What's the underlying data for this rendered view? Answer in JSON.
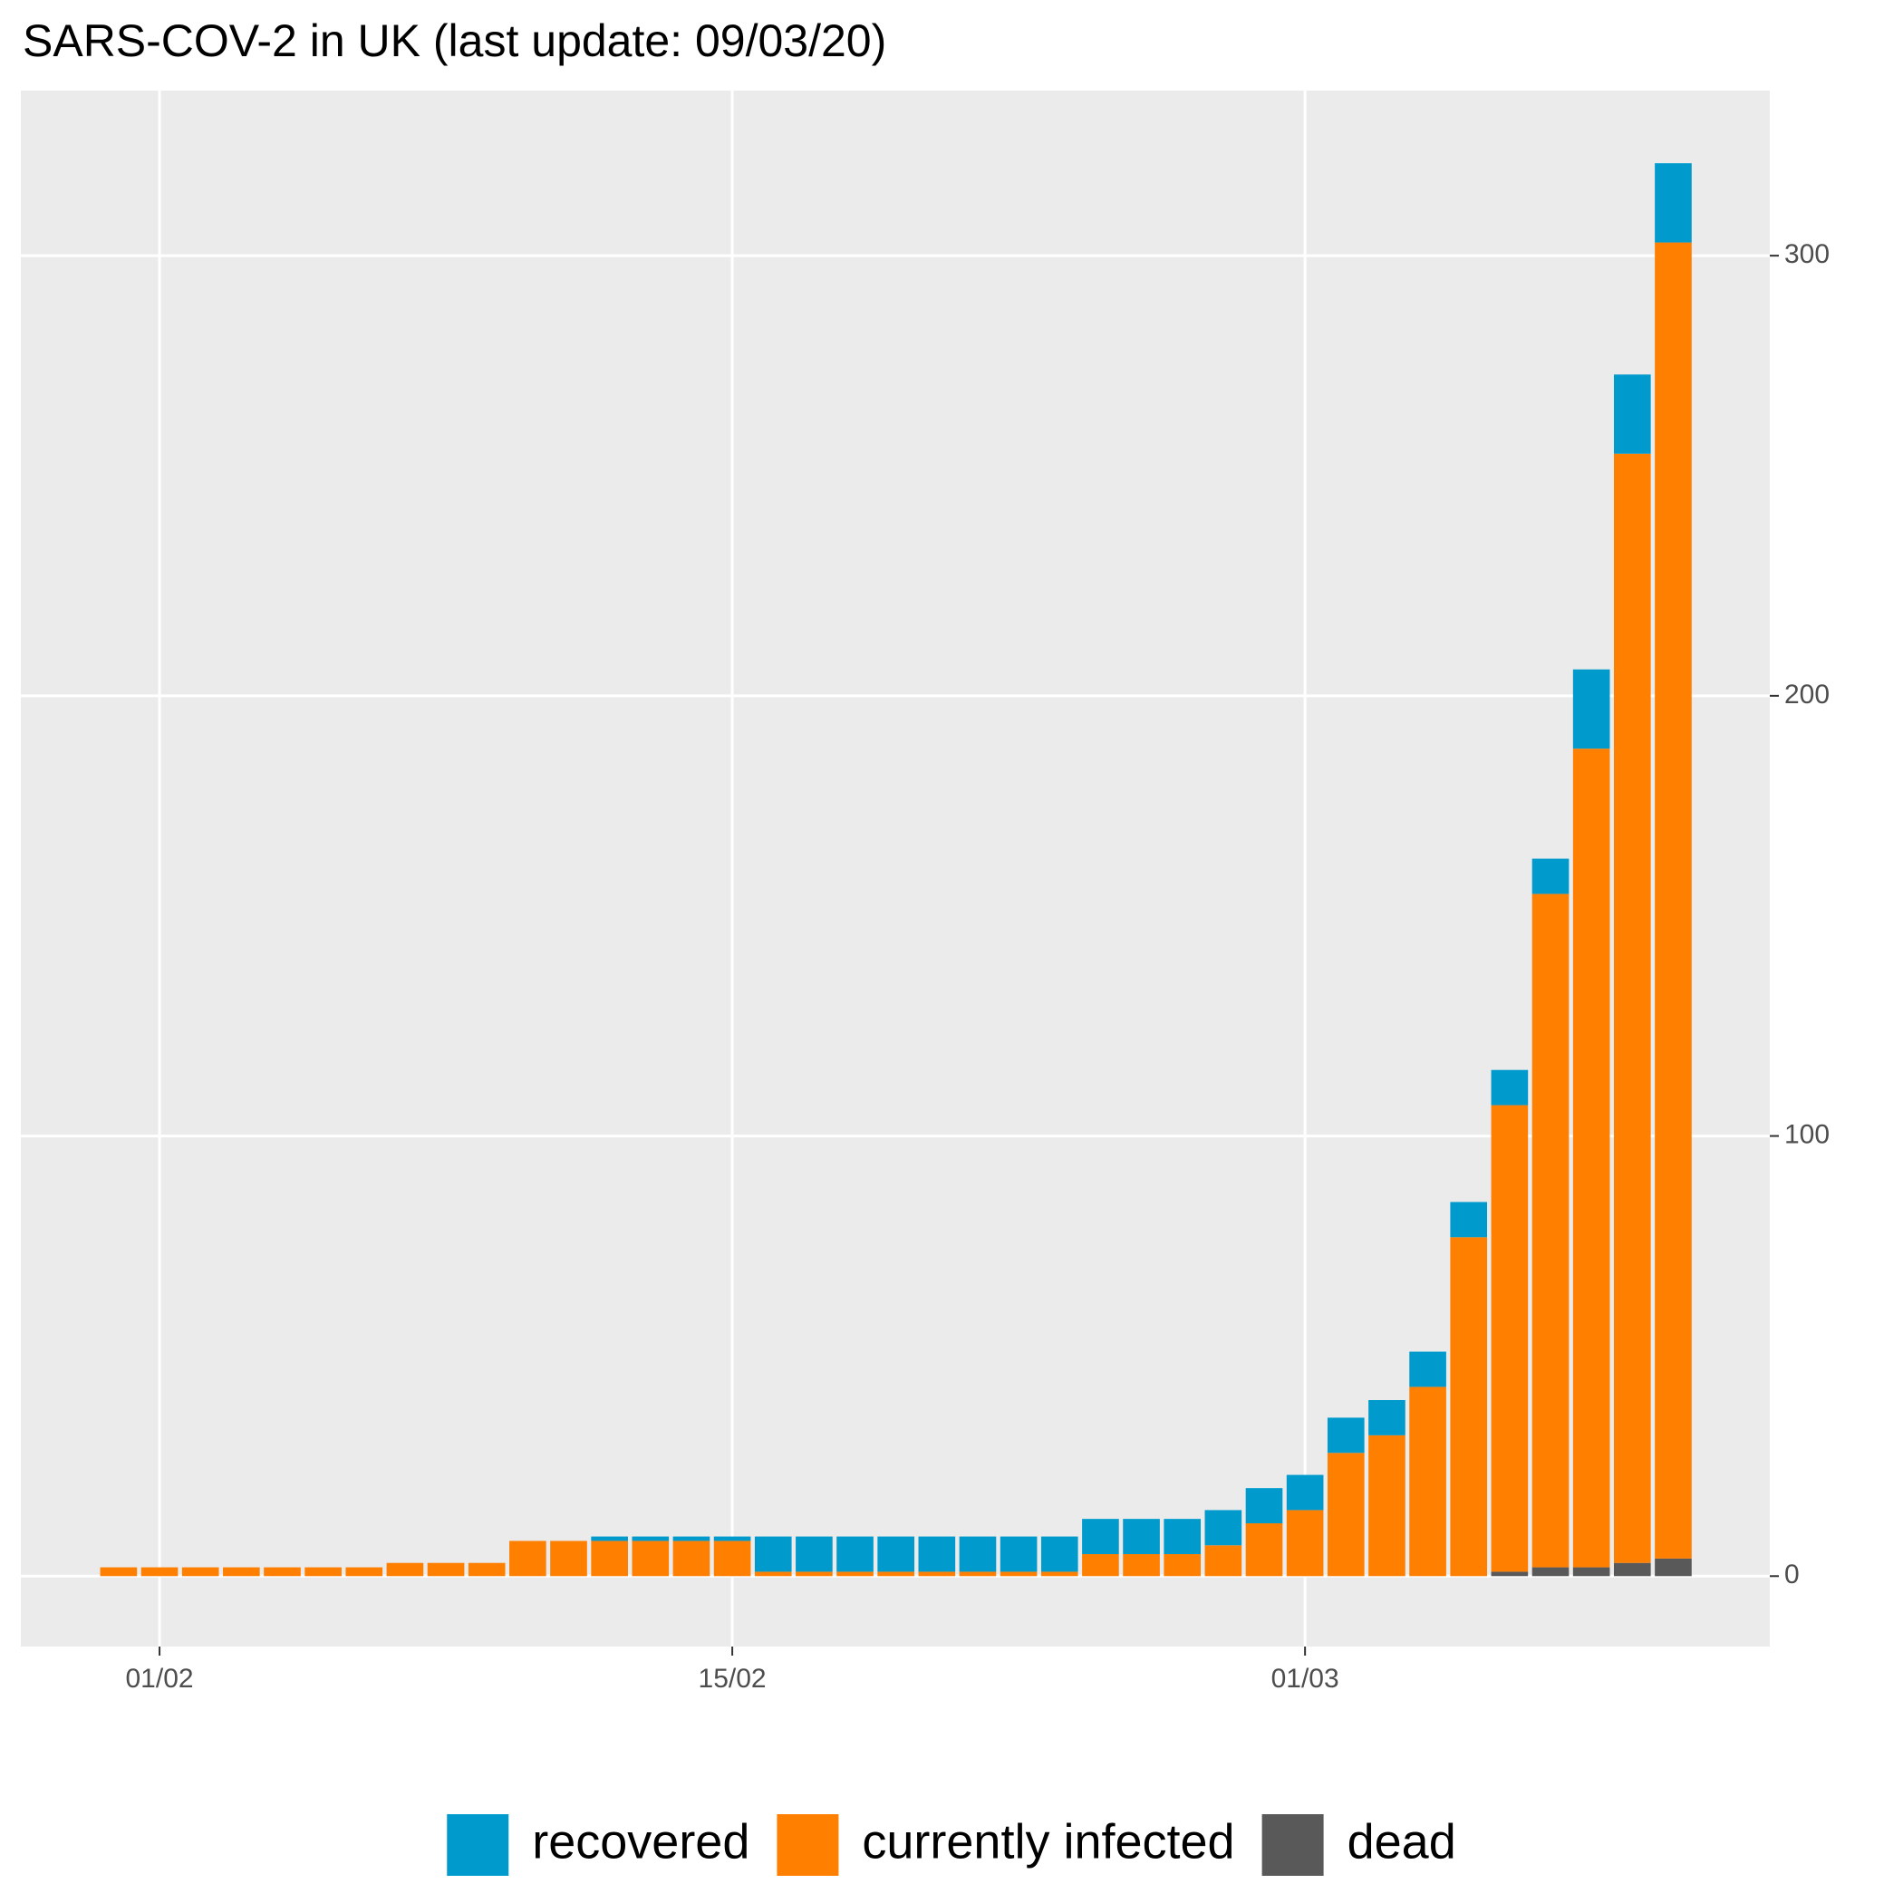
{
  "chart_data": {
    "type": "stacked-bar",
    "title": "SARS-COV-2 in UK (last update: 09/03/20)",
    "categories": [
      null,
      "01/02",
      null,
      null,
      null,
      null,
      null,
      null,
      null,
      null,
      null,
      null,
      null,
      null,
      null,
      "15/02",
      null,
      null,
      null,
      null,
      null,
      null,
      null,
      null,
      null,
      null,
      null,
      null,
      null,
      "01/03",
      null,
      null,
      null,
      null,
      null,
      null,
      null,
      null,
      null
    ],
    "series": [
      {
        "name": "recovered",
        "color": "#009ACD",
        "values": [
          0,
          0,
          0,
          0,
          0,
          0,
          0,
          0,
          0,
          0,
          0,
          0,
          1,
          1,
          1,
          1,
          8,
          8,
          8,
          8,
          8,
          8,
          8,
          8,
          8,
          8,
          8,
          8,
          8,
          8,
          8,
          8,
          8,
          8,
          8,
          8,
          18,
          18,
          18
        ]
      },
      {
        "name": "currently infected",
        "color": "#FF7F00",
        "values": [
          2,
          2,
          2,
          2,
          2,
          2,
          2,
          3,
          3,
          3,
          8,
          8,
          8,
          8,
          8,
          8,
          1,
          1,
          1,
          1,
          1,
          1,
          1,
          1,
          5,
          5,
          5,
          7,
          12,
          15,
          28,
          32,
          43,
          77,
          106,
          153,
          186,
          252,
          299
        ]
      },
      {
        "name": "dead",
        "color": "#595959",
        "values": [
          0,
          0,
          0,
          0,
          0,
          0,
          0,
          0,
          0,
          0,
          0,
          0,
          0,
          0,
          0,
          0,
          0,
          0,
          0,
          0,
          0,
          0,
          0,
          0,
          0,
          0,
          0,
          0,
          0,
          0,
          0,
          0,
          0,
          0,
          1,
          2,
          2,
          3,
          4
        ]
      }
    ],
    "ylim": [
      -16,
      337.5
    ],
    "yticks": [
      0,
      100,
      200,
      300
    ],
    "y_axis_side": "right",
    "grid": true,
    "legend": "bottom"
  }
}
